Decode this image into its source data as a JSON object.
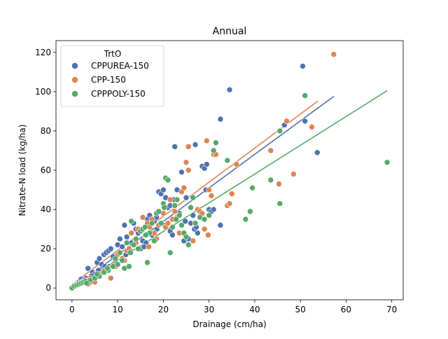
{
  "chart_data": {
    "type": "scatter",
    "title": "Annual",
    "xlabel": "Drainage (cm/ha)",
    "ylabel": "Nitrate-N load (kg/ha)",
    "xlim": [
      -3.5,
      72.5
    ],
    "ylim": [
      -6,
      126
    ],
    "xticks": [
      0,
      10,
      20,
      30,
      40,
      50,
      60,
      70
    ],
    "yticks": [
      0,
      20,
      40,
      60,
      80,
      100,
      120
    ],
    "grid": false,
    "legend": {
      "title": "TrtO",
      "placement": "top-left"
    },
    "series": [
      {
        "name": "CPPUREA-150",
        "color": "#4c72b0",
        "fit": {
          "x": [
            0,
            57.3
          ],
          "y": [
            -0.2,
            97.6
          ]
        },
        "points": [
          [
            0,
            0
          ],
          [
            0.5,
            1
          ],
          [
            1,
            2
          ],
          [
            1.5,
            3
          ],
          [
            2,
            4.5
          ],
          [
            2.5,
            3.5
          ],
          [
            3,
            5
          ],
          [
            3.5,
            10
          ],
          [
            4,
            3
          ],
          [
            3.5,
            2
          ],
          [
            4.5,
            8
          ],
          [
            5,
            7
          ],
          [
            5.5,
            13
          ],
          [
            6,
            15
          ],
          [
            6.5,
            12
          ],
          [
            7,
            17
          ],
          [
            7.5,
            18
          ],
          [
            8,
            19
          ],
          [
            8.5,
            20
          ],
          [
            9,
            16
          ],
          [
            9.5,
            14
          ],
          [
            10,
            22
          ],
          [
            10.5,
            25
          ],
          [
            11,
            21
          ],
          [
            11.5,
            32
          ],
          [
            12,
            26
          ],
          [
            12.5,
            20
          ],
          [
            13,
            23
          ],
          [
            13.5,
            33
          ],
          [
            14,
            30
          ],
          [
            14.5,
            28
          ],
          [
            15,
            20
          ],
          [
            15.5,
            24
          ],
          [
            16,
            31
          ],
          [
            16.5,
            35
          ],
          [
            17,
            37
          ],
          [
            17.5,
            27
          ],
          [
            18,
            34
          ],
          [
            18.5,
            36
          ],
          [
            19,
            49
          ],
          [
            19.5,
            48
          ],
          [
            20,
            50
          ],
          [
            20.5,
            46
          ],
          [
            21,
            41
          ],
          [
            21.5,
            29
          ],
          [
            22,
            27
          ],
          [
            22.5,
            72
          ],
          [
            23,
            50
          ],
          [
            23.5,
            38
          ],
          [
            24,
            59
          ],
          [
            24.5,
            24
          ],
          [
            25,
            46
          ],
          [
            25.5,
            25
          ],
          [
            26,
            33
          ],
          [
            26.5,
            37
          ],
          [
            27,
            73
          ],
          [
            27.5,
            28
          ],
          [
            28,
            36
          ],
          [
            28.5,
            62
          ],
          [
            29,
            61
          ],
          [
            29.5,
            63
          ],
          [
            30,
            40
          ],
          [
            30.5,
            39
          ],
          [
            31,
            40
          ],
          [
            32.5,
            86
          ],
          [
            32.5,
            32
          ],
          [
            34.5,
            101
          ],
          [
            46.5,
            83
          ],
          [
            50.5,
            113
          ],
          [
            51,
            85
          ],
          [
            53.7,
            69
          ],
          [
            6.8,
            10
          ],
          [
            7.2,
            11
          ],
          [
            12.8,
            19
          ],
          [
            18.6,
            30
          ],
          [
            20.3,
            32
          ],
          [
            21.5,
            42
          ],
          [
            22.3,
            45
          ],
          [
            24.8,
            34
          ],
          [
            26.8,
            30
          ],
          [
            27.2,
            31
          ],
          [
            29.3,
            50
          ],
          [
            16.2,
            23
          ],
          [
            15.8,
            21
          ],
          [
            11.8,
            17
          ],
          [
            4.2,
            6
          ],
          [
            5.8,
            9
          ],
          [
            2.8,
            4
          ],
          [
            1.2,
            1.5
          ],
          [
            8.2,
            11
          ]
        ]
      },
      {
        "name": "CPP-150",
        "color": "#dd8452",
        "fit": {
          "x": [
            0,
            53.8
          ],
          "y": [
            1.8,
            95.2
          ]
        },
        "points": [
          [
            0,
            0
          ],
          [
            0.5,
            1
          ],
          [
            1,
            2
          ],
          [
            2,
            3
          ],
          [
            3,
            3.5
          ],
          [
            3.5,
            2
          ],
          [
            4,
            5
          ],
          [
            5,
            3
          ],
          [
            6,
            7
          ],
          [
            7,
            9
          ],
          [
            8,
            10
          ],
          [
            8.5,
            5
          ],
          [
            9,
            12
          ],
          [
            9.5,
            11
          ],
          [
            10,
            17
          ],
          [
            10.5,
            18
          ],
          [
            11,
            15
          ],
          [
            11.5,
            14
          ],
          [
            12,
            19
          ],
          [
            12.5,
            20
          ],
          [
            13,
            28
          ],
          [
            13.5,
            22
          ],
          [
            14,
            23
          ],
          [
            14.5,
            30
          ],
          [
            15,
            29
          ],
          [
            15.5,
            36
          ],
          [
            16,
            27
          ],
          [
            16.5,
            33
          ],
          [
            17,
            31
          ],
          [
            17.5,
            35
          ],
          [
            18,
            28
          ],
          [
            18.5,
            25
          ],
          [
            19,
            32
          ],
          [
            20,
            38
          ],
          [
            20.5,
            31
          ],
          [
            21,
            33
          ],
          [
            21.5,
            45
          ],
          [
            22,
            35
          ],
          [
            22.5,
            39
          ],
          [
            23,
            36
          ],
          [
            23.5,
            28
          ],
          [
            24,
            49
          ],
          [
            24.5,
            51
          ],
          [
            25,
            64
          ],
          [
            25.5,
            60
          ],
          [
            26,
            41
          ],
          [
            26.5,
            24
          ],
          [
            27,
            33
          ],
          [
            27.5,
            40
          ],
          [
            28,
            39
          ],
          [
            28.5,
            38
          ],
          [
            29,
            30
          ],
          [
            29.5,
            75
          ],
          [
            30,
            50
          ],
          [
            31,
            68
          ],
          [
            31.5,
            68
          ],
          [
            34,
            42
          ],
          [
            34.5,
            43
          ],
          [
            35,
            48
          ],
          [
            36,
            63
          ],
          [
            43.5,
            70
          ],
          [
            47,
            85
          ],
          [
            48.5,
            58
          ],
          [
            52.5,
            82
          ],
          [
            57.3,
            119
          ],
          [
            25.5,
            72
          ],
          [
            29.8,
            27
          ],
          [
            30.5,
            47
          ],
          [
            45.3,
            53
          ],
          [
            16.8,
            21
          ]
        ]
      },
      {
        "name": "CPPPOLY-150",
        "color": "#55a868",
        "fit": {
          "x": [
            0,
            69
          ],
          "y": [
            -0.5,
            100.5
          ]
        },
        "points": [
          [
            0,
            0
          ],
          [
            0.5,
            1
          ],
          [
            1,
            1.5
          ],
          [
            1.5,
            2
          ],
          [
            2,
            2.5
          ],
          [
            2.5,
            3
          ],
          [
            3,
            3.5
          ],
          [
            4,
            4
          ],
          [
            5,
            5
          ],
          [
            6,
            6
          ],
          [
            7,
            8
          ],
          [
            8,
            9
          ],
          [
            9,
            11
          ],
          [
            10,
            12
          ],
          [
            10.5,
            18
          ],
          [
            11,
            14
          ],
          [
            11.5,
            10
          ],
          [
            12,
            23
          ],
          [
            12.5,
            11
          ],
          [
            13,
            34
          ],
          [
            13.5,
            22
          ],
          [
            14,
            25
          ],
          [
            14.5,
            20
          ],
          [
            15,
            29
          ],
          [
            15.5,
            30
          ],
          [
            16,
            31
          ],
          [
            16.5,
            13
          ],
          [
            17,
            28
          ],
          [
            17.5,
            33
          ],
          [
            18,
            24
          ],
          [
            18.5,
            38
          ],
          [
            19,
            39
          ],
          [
            19.5,
            33
          ],
          [
            20,
            43
          ],
          [
            20.5,
            56
          ],
          [
            21,
            55
          ],
          [
            21.5,
            18
          ],
          [
            22,
            31
          ],
          [
            22.5,
            42
          ],
          [
            23,
            45
          ],
          [
            23.5,
            37
          ],
          [
            24,
            32
          ],
          [
            24.5,
            28
          ],
          [
            25,
            26
          ],
          [
            25.5,
            22
          ],
          [
            26,
            41
          ],
          [
            26.5,
            46
          ],
          [
            27,
            33
          ],
          [
            28,
            36
          ],
          [
            29,
            35
          ],
          [
            30,
            37
          ],
          [
            31,
            70
          ],
          [
            31.5,
            74
          ],
          [
            34,
            65
          ],
          [
            38,
            35
          ],
          [
            39,
            39
          ],
          [
            39.5,
            51
          ],
          [
            43.5,
            55
          ],
          [
            45.5,
            43
          ],
          [
            45.5,
            80
          ],
          [
            51,
            98
          ],
          [
            69,
            64
          ],
          [
            20.2,
            41
          ],
          [
            16.2,
            27
          ],
          [
            12.8,
            18
          ],
          [
            9.5,
            15
          ],
          [
            5.5,
            7
          ],
          [
            3.2,
            2.5
          ],
          [
            7.8,
            10
          ],
          [
            22.8,
            35
          ]
        ]
      }
    ]
  }
}
